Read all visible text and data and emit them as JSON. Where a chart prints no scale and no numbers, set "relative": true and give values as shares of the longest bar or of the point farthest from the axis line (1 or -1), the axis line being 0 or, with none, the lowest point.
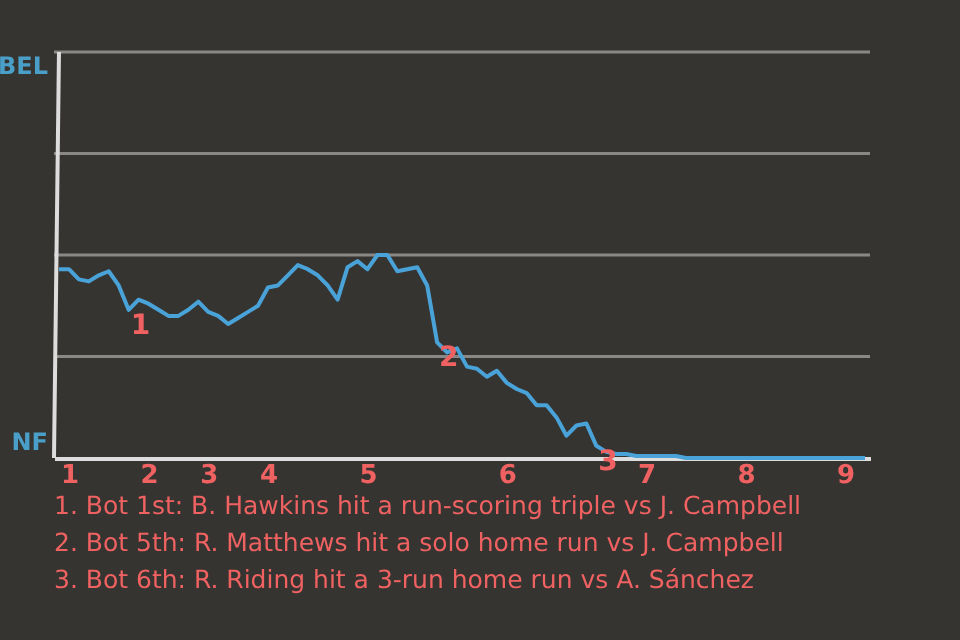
{
  "chart_data": {
    "type": "line",
    "relative": true,
    "categories": [
      null,
      "1",
      null,
      null,
      null,
      null,
      null,
      null,
      null,
      "2",
      null,
      null,
      null,
      null,
      null,
      "3",
      null,
      null,
      null,
      null,
      null,
      "4",
      null,
      null,
      null,
      null,
      null,
      null,
      null,
      null,
      null,
      "5",
      null,
      null,
      null,
      null,
      null,
      null,
      null,
      null,
      null,
      null,
      null,
      null,
      null,
      "6",
      null,
      null,
      null,
      null,
      null,
      null,
      null,
      null,
      null,
      null,
      null,
      null,
      null,
      "7",
      null,
      null,
      null,
      null,
      null,
      null,
      null,
      null,
      null,
      "8",
      null,
      null,
      null,
      null,
      null,
      null,
      null,
      null,
      null,
      "9",
      null,
      null
    ],
    "series": [
      {
        "color": "#4aa3d8",
        "values": [
          0.93,
          0.93,
          0.88,
          0.87,
          0.9,
          0.92,
          0.85,
          0.73,
          0.78,
          0.76,
          0.73,
          0.7,
          0.7,
          0.73,
          0.77,
          0.72,
          0.7,
          0.66,
          0.69,
          0.72,
          0.75,
          0.84,
          0.85,
          0.9,
          0.95,
          0.93,
          0.9,
          0.85,
          0.78,
          0.94,
          0.97,
          0.93,
          1,
          1,
          0.92,
          0.93,
          0.94,
          0.85,
          0.57,
          0.52,
          0.54,
          0.45,
          0.44,
          0.4,
          0.43,
          0.37,
          0.34,
          0.32,
          0.26,
          0.26,
          0.2,
          0.11,
          0.16,
          0.17,
          0.06,
          0.03,
          0.02,
          0.02,
          0.01,
          0.01,
          0.01,
          0.01,
          0.01,
          0,
          0,
          0,
          0,
          0,
          0,
          0,
          0,
          0,
          0,
          0,
          0,
          0,
          0,
          0,
          0,
          0,
          0,
          0
        ]
      }
    ],
    "ref_lines": [
      {
        "axis": "y",
        "value": 0.5,
        "color": "#8a8886"
      },
      {
        "axis": "y",
        "value": 1,
        "color": "#8a8886"
      },
      {
        "axis": "y",
        "value": 1.5,
        "color": "#8a8886"
      },
      {
        "axis": "y",
        "value": 2,
        "color": "#8a8886"
      }
    ],
    "marker": "none",
    "line_style": "solid",
    "annotations": [
      "BEL",
      "NF",
      {
        "text": "1",
        "y": 0.73
      },
      {
        "text": "2",
        "y": 0.57
      },
      {
        "text": "3",
        "y": 0.06
      },
      "1. Bot 1st: B. Hawkins hit a run-scoring triple vs J. Campbell",
      "2. Bot 5th: R. Matthews hit a solo home run vs J. Campbell",
      "3. Bot 6th: R. Riding hit a 3-run home run vs A. Sánchez"
    ]
  }
}
